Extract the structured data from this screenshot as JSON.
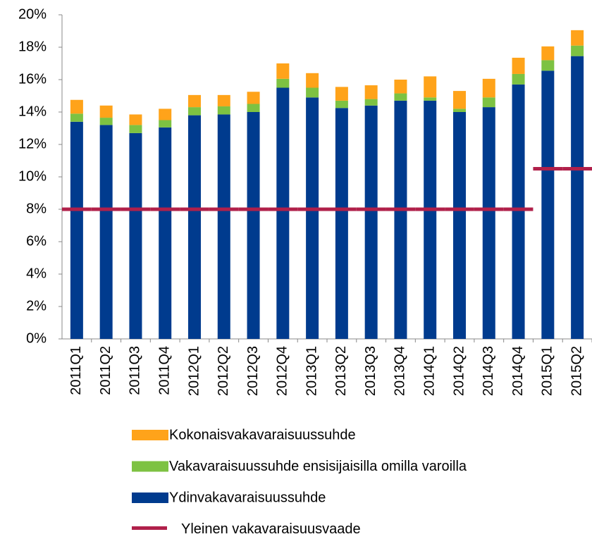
{
  "chart_data": {
    "type": "bar",
    "stacked": true,
    "categories": [
      "2011Q1",
      "2011Q2",
      "2011Q3",
      "2011Q4",
      "2012Q1",
      "2012Q2",
      "2012Q3",
      "2012Q4",
      "2013Q1",
      "2013Q2",
      "2013Q3",
      "2013Q4",
      "2014Q1",
      "2014Q2",
      "2014Q3",
      "2014Q4",
      "2015Q1",
      "2015Q2"
    ],
    "series": [
      {
        "name": "Ydinvakavaraisuussuhde",
        "color": "#003b8e",
        "values": [
          13.4,
          13.2,
          12.7,
          13.05,
          13.8,
          13.85,
          14.0,
          15.5,
          14.9,
          14.25,
          14.4,
          14.7,
          14.7,
          14.0,
          14.3,
          15.7,
          16.55,
          17.45
        ]
      },
      {
        "name": "Vakavaraisuussuhde ensisijaisilla omilla varoilla",
        "color": "#7dc242",
        "values": [
          0.5,
          0.45,
          0.5,
          0.45,
          0.5,
          0.5,
          0.5,
          0.55,
          0.6,
          0.45,
          0.4,
          0.45,
          0.2,
          0.2,
          0.6,
          0.65,
          0.65,
          0.65
        ]
      },
      {
        "name": "Kokonaisvakavaraisuussuhde",
        "color": "#ffa31a",
        "values": [
          0.85,
          0.75,
          0.65,
          0.7,
          0.75,
          0.7,
          0.75,
          0.95,
          0.9,
          0.85,
          0.85,
          0.85,
          1.3,
          1.1,
          1.15,
          1.0,
          0.85,
          0.95
        ]
      },
      {
        "name": "Yleinen vakavaraisuusvaade",
        "color": "#b0204a",
        "type": "line",
        "values": [
          8,
          8,
          8,
          8,
          8,
          8,
          8,
          8,
          8,
          8,
          8,
          8,
          8,
          8,
          8,
          8,
          10.5,
          10.5
        ]
      }
    ],
    "ylim": [
      0,
      20
    ],
    "yticks": [
      {
        "value": 0,
        "label": "0%"
      },
      {
        "value": 2,
        "label": "2%"
      },
      {
        "value": 4,
        "label": "4%"
      },
      {
        "value": 6,
        "label": "6%"
      },
      {
        "value": 8,
        "label": "8%"
      },
      {
        "value": 10,
        "label": "10%"
      },
      {
        "value": 12,
        "label": "12%"
      },
      {
        "value": 14,
        "label": "14%"
      },
      {
        "value": 16,
        "label": "16%"
      },
      {
        "value": 18,
        "label": "18%"
      },
      {
        "value": 20,
        "label": "20%"
      }
    ],
    "grid": false
  }
}
